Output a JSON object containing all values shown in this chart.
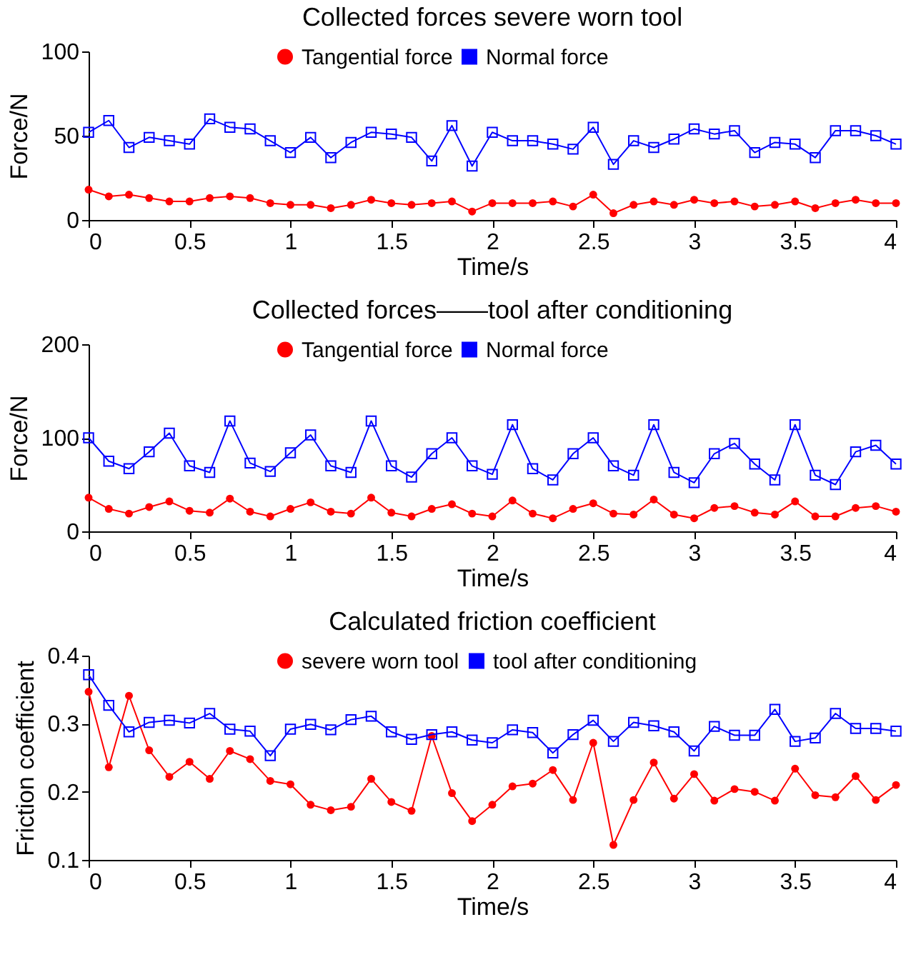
{
  "chart_data": [
    {
      "type": "line",
      "title": "Collected forces        severe worn tool",
      "xlabel": "Time/s",
      "ylabel": "Force/N",
      "legend": "top",
      "x": [
        0,
        0.1,
        0.2,
        0.3,
        0.4,
        0.5,
        0.6,
        0.7,
        0.8,
        0.9,
        1,
        1.1,
        1.2,
        1.3,
        1.4,
        1.5,
        1.6,
        1.7,
        1.8,
        1.9,
        2,
        2.1,
        2.2,
        2.3,
        2.4,
        2.5,
        2.6,
        2.7,
        2.8,
        2.9,
        3,
        3.1,
        3.2,
        3.3,
        3.4,
        3.5,
        3.6,
        3.7,
        3.8,
        3.9,
        4
      ],
      "series": [
        {
          "name": "Tangential force",
          "color": "#ff0000",
          "marker": "circle",
          "values": [
            18,
            14,
            15,
            13,
            11,
            11,
            13,
            14,
            13,
            10,
            9,
            9,
            7,
            9,
            12,
            10,
            9,
            10,
            11,
            5,
            10,
            10,
            10,
            11,
            8,
            15,
            4,
            9,
            11,
            9,
            12,
            10,
            11,
            8,
            9,
            11,
            7,
            10,
            12,
            10,
            10
          ]
        },
        {
          "name": "Normal force",
          "color": "#0000ff",
          "marker": "square",
          "values": [
            52,
            59,
            43,
            49,
            47,
            45,
            60,
            55,
            54,
            47,
            40,
            49,
            37,
            46,
            52,
            51,
            49,
            35,
            56,
            32,
            52,
            47,
            47,
            45,
            42,
            55,
            33,
            47,
            43,
            48,
            54,
            51,
            53,
            40,
            46,
            45,
            37,
            53,
            53,
            50,
            45
          ]
        }
      ],
      "xlim": [
        0,
        4
      ],
      "xticks": [
        0,
        0.5,
        1,
        1.5,
        2,
        2.5,
        3,
        3.5,
        4
      ],
      "ylim": [
        0,
        100
      ],
      "yticks": [
        0,
        50,
        100
      ]
    },
    {
      "type": "line",
      "title": "Collected forces——tool after conditioning",
      "xlabel": "Time/s",
      "ylabel": "Force/N",
      "legend": "top",
      "x": [
        0,
        0.1,
        0.2,
        0.3,
        0.4,
        0.5,
        0.6,
        0.7,
        0.8,
        0.9,
        1,
        1.1,
        1.2,
        1.3,
        1.4,
        1.5,
        1.6,
        1.7,
        1.8,
        1.9,
        2,
        2.1,
        2.2,
        2.3,
        2.4,
        2.5,
        2.6,
        2.7,
        2.8,
        2.9,
        3,
        3.1,
        3.2,
        3.3,
        3.4,
        3.5,
        3.6,
        3.7,
        3.8,
        3.9,
        4
      ],
      "series": [
        {
          "name": "Tangential force",
          "color": "#ff0000",
          "marker": "circle",
          "values": [
            36,
            24,
            19,
            26,
            32,
            22,
            20,
            35,
            21,
            16,
            24,
            31,
            21,
            19,
            36,
            20,
            16,
            24,
            29,
            19,
            16,
            33,
            19,
            14,
            24,
            30,
            19,
            18,
            34,
            18,
            14,
            25,
            27,
            20,
            18,
            32,
            16,
            16,
            25,
            27,
            21
          ]
        },
        {
          "name": "Normal force",
          "color": "#0000ff",
          "marker": "square",
          "values": [
            100,
            75,
            67,
            85,
            105,
            70,
            63,
            118,
            73,
            64,
            84,
            103,
            70,
            63,
            118,
            70,
            58,
            83,
            100,
            70,
            61,
            114,
            67,
            55,
            83,
            100,
            70,
            60,
            114,
            63,
            52,
            83,
            94,
            72,
            55,
            114,
            60,
            50,
            85,
            92,
            72
          ]
        }
      ],
      "xlim": [
        0,
        4
      ],
      "xticks": [
        0,
        0.5,
        1,
        1.5,
        2,
        2.5,
        3,
        3.5,
        4
      ],
      "ylim": [
        0,
        200
      ],
      "yticks": [
        0,
        100,
        200
      ]
    },
    {
      "type": "line",
      "title": "Calculated friction coefficient",
      "xlabel": "Time/s",
      "ylabel": "Friction coefficient",
      "legend": "top",
      "x": [
        0,
        0.1,
        0.2,
        0.3,
        0.4,
        0.5,
        0.6,
        0.7,
        0.8,
        0.9,
        1,
        1.1,
        1.2,
        1.3,
        1.4,
        1.5,
        1.6,
        1.7,
        1.8,
        1.9,
        2,
        2.1,
        2.2,
        2.3,
        2.4,
        2.5,
        2.6,
        2.7,
        2.8,
        2.9,
        3,
        3.1,
        3.2,
        3.3,
        3.4,
        3.5,
        3.6,
        3.7,
        3.8,
        3.9,
        4
      ],
      "series": [
        {
          "name": "severe worn tool",
          "color": "#ff0000",
          "marker": "circle",
          "values": [
            0.347,
            0.236,
            0.341,
            0.261,
            0.222,
            0.244,
            0.219,
            0.26,
            0.248,
            0.216,
            0.211,
            0.181,
            0.173,
            0.178,
            0.219,
            0.185,
            0.172,
            0.282,
            0.198,
            0.157,
            0.181,
            0.208,
            0.212,
            0.232,
            0.188,
            0.272,
            0.122,
            0.188,
            0.243,
            0.19,
            0.226,
            0.187,
            0.204,
            0.2,
            0.187,
            0.234,
            0.195,
            0.192,
            0.223,
            0.188,
            0.21
          ]
        },
        {
          "name": "tool after conditioning",
          "color": "#0000ff",
          "marker": "square",
          "values": [
            0.372,
            0.327,
            0.288,
            0.302,
            0.305,
            0.301,
            0.315,
            0.292,
            0.289,
            0.253,
            0.292,
            0.299,
            0.291,
            0.306,
            0.311,
            0.288,
            0.277,
            0.284,
            0.288,
            0.276,
            0.272,
            0.291,
            0.287,
            0.257,
            0.284,
            0.305,
            0.274,
            0.302,
            0.297,
            0.288,
            0.26,
            0.296,
            0.283,
            0.283,
            0.321,
            0.274,
            0.279,
            0.315,
            0.293,
            0.293,
            0.289
          ]
        }
      ],
      "xlim": [
        0,
        4
      ],
      "xticks": [
        0,
        0.5,
        1,
        1.5,
        2,
        2.5,
        3,
        3.5,
        4
      ],
      "ylim": [
        0.1,
        0.4
      ],
      "yticks": [
        0.1,
        0.2,
        0.3,
        0.4
      ]
    }
  ]
}
